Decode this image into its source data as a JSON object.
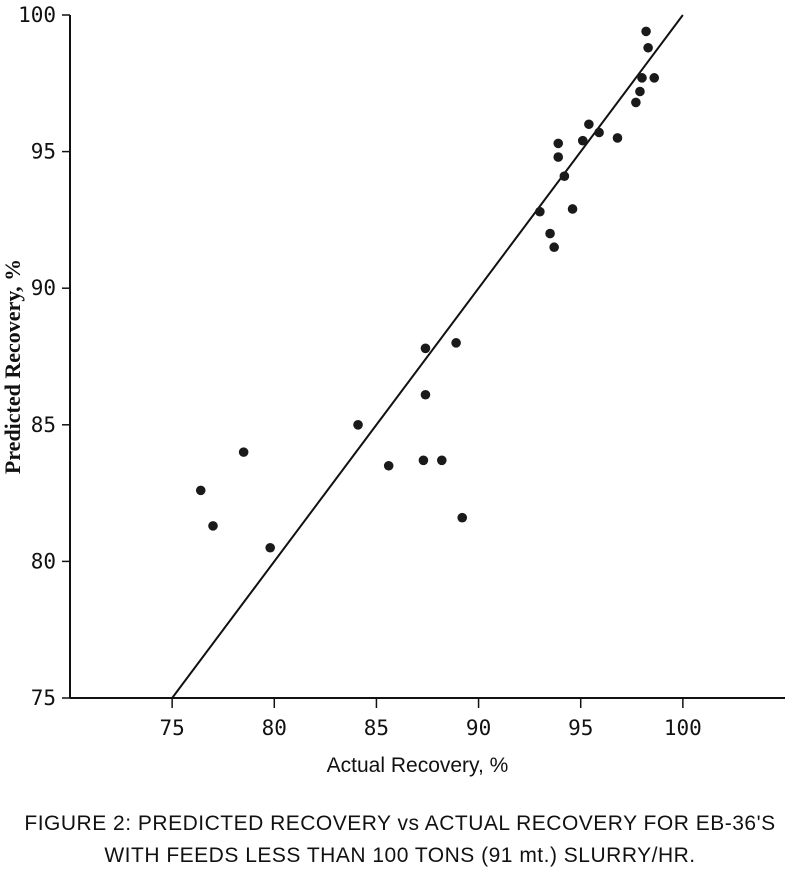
{
  "chart_data": {
    "type": "scatter",
    "xlabel": "Actual Recovery, %",
    "ylabel": "Predicted Recovery, %",
    "xlim": [
      70,
      105
    ],
    "ylim": [
      75,
      100
    ],
    "x_ticks": [
      75,
      80,
      85,
      90,
      95,
      100
    ],
    "y_ticks": [
      75,
      80,
      85,
      90,
      95,
      100
    ],
    "grid": false,
    "legend": "none",
    "reference_line": {
      "x": [
        75,
        100
      ],
      "y": [
        75,
        100
      ]
    },
    "points": [
      {
        "x": 76.4,
        "y": 82.6
      },
      {
        "x": 77.0,
        "y": 81.3
      },
      {
        "x": 78.5,
        "y": 84.0
      },
      {
        "x": 79.8,
        "y": 80.5
      },
      {
        "x": 84.1,
        "y": 85.0
      },
      {
        "x": 85.6,
        "y": 83.5
      },
      {
        "x": 87.3,
        "y": 83.7
      },
      {
        "x": 87.4,
        "y": 87.8
      },
      {
        "x": 87.4,
        "y": 86.1
      },
      {
        "x": 88.2,
        "y": 83.7
      },
      {
        "x": 88.9,
        "y": 88.0
      },
      {
        "x": 89.2,
        "y": 81.6
      },
      {
        "x": 93.0,
        "y": 92.8
      },
      {
        "x": 93.5,
        "y": 92.0
      },
      {
        "x": 93.7,
        "y": 91.5
      },
      {
        "x": 93.9,
        "y": 94.8
      },
      {
        "x": 93.9,
        "y": 95.3
      },
      {
        "x": 94.2,
        "y": 94.1
      },
      {
        "x": 94.6,
        "y": 92.9
      },
      {
        "x": 95.1,
        "y": 95.4
      },
      {
        "x": 95.4,
        "y": 96.0
      },
      {
        "x": 95.9,
        "y": 95.7
      },
      {
        "x": 96.8,
        "y": 95.5
      },
      {
        "x": 97.7,
        "y": 96.8
      },
      {
        "x": 97.9,
        "y": 97.2
      },
      {
        "x": 98.0,
        "y": 97.7
      },
      {
        "x": 98.2,
        "y": 99.4
      },
      {
        "x": 98.3,
        "y": 98.8
      },
      {
        "x": 98.6,
        "y": 97.7
      }
    ]
  },
  "caption": {
    "line1": "FIGURE 2: PREDICTED RECOVERY vs ACTUAL RECOVERY FOR EB-36'S",
    "line2": "WITH FEEDS LESS THAN 100 TONS (91 mt.) SLURRY/HR."
  }
}
